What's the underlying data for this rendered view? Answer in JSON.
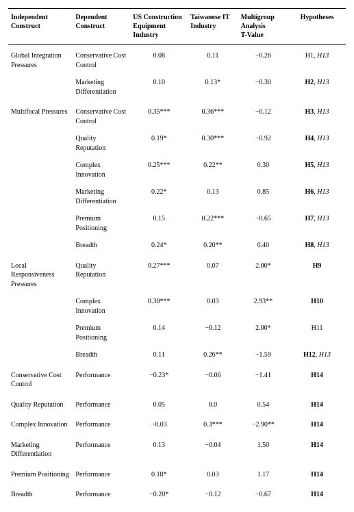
{
  "headers": {
    "independent": "Independent Construct",
    "dependent": "Dependent Construct",
    "us": "US Construction Equipment Industry",
    "tw": "Taiwanese IT Industry",
    "multigroup_l1": "Multigroup",
    "multigroup_l2": "Analysis",
    "multigroup_l3": "T-Value",
    "hypotheses": "Hypotheses"
  },
  "rows": [
    {
      "section": true,
      "ind": "Global Integration Pressures",
      "dep": "Conservative Cost Control",
      "us": "0.08",
      "tw": "0.11",
      "mg": "−0.26",
      "hyp": "H1, <i>H13</i>"
    },
    {
      "ind": "",
      "dep": "Marketing Differentiation",
      "us": "0.10",
      "tw": "0.13*",
      "mg": "−0.30",
      "hyp": "<b>H2</b>, <i>H13</i>"
    },
    {
      "section": true,
      "ind": "Multifocal Pressures",
      "dep": "Conservative Cost Control",
      "us": "0.35***",
      "tw": "0.36***",
      "mg": "−0.12",
      "hyp": "<b>H3</b>, <i>H13</i>"
    },
    {
      "ind": "",
      "dep": "Quality Reputation",
      "us": "0.19*",
      "tw": "0.30***",
      "mg": "−0.92",
      "hyp": "<b>H4</b>, <i>H13</i>"
    },
    {
      "ind": "",
      "dep": "Complex Innovation",
      "us": "0.25***",
      "tw": "0.22**",
      "mg": "0.30",
      "hyp": "<b>H5</b>, <i>H13</i>"
    },
    {
      "ind": "",
      "dep": "Marketing Differentiation",
      "us": "0.22*",
      "tw": "0.13",
      "mg": "0.85",
      "hyp": "<b>H6</b>, <i>H13</i>"
    },
    {
      "ind": "",
      "dep": "Premium Positioning",
      "us": "0.15",
      "tw": "0.22***",
      "mg": "−0.65",
      "hyp": "<b>H7</b>, <i>H13</i>"
    },
    {
      "ind": "",
      "dep": "Breadth",
      "us": "0.24*",
      "tw": "0.20**",
      "mg": "0.40",
      "hyp": "<b>H8</b>, <i>H13</i>"
    },
    {
      "section": true,
      "ind": "Local Responsiveness Pressures",
      "dep": "Quality Reputation",
      "us": "0.27***",
      "tw": "0.07",
      "mg": "2.00*",
      "hyp": "<b>H9</b>"
    },
    {
      "ind": "",
      "dep": "Complex Innovation",
      "us": "0.30***",
      "tw": "0.03",
      "mg": "2.93**",
      "hyp": "<b>H10</b>"
    },
    {
      "ind": "",
      "dep": "Premium Positioning",
      "us": "0.14",
      "tw": "−0.12",
      "mg": "2.00*",
      "hyp": "H11"
    },
    {
      "ind": "",
      "dep": "Breadth",
      "us": "0.11",
      "tw": "0.26**",
      "mg": "−1.59",
      "hyp": "<b>H12</b>, <i>H13</i>"
    },
    {
      "section": true,
      "ind": "Conservative Cost Control",
      "dep": "Performance",
      "us": "−0.23*",
      "tw": "−0.06",
      "mg": "−1.41",
      "hyp": "<b>H14</b>"
    },
    {
      "section": true,
      "ind": "Quality Reputation",
      "dep": "Performance",
      "us": "0.05",
      "tw": "0.0",
      "mg": "0.54",
      "hyp": "<b>H14</b>"
    },
    {
      "section": true,
      "ind": "Complex Innovation",
      "dep": "Performance",
      "us": "−0.03",
      "tw": "0.3***",
      "mg": "−2.90**",
      "hyp": "<b>H14</b>"
    },
    {
      "section": true,
      "ind": "Marketing Differentiation",
      "dep": "Performance",
      "us": "0.13",
      "tw": "−0.04",
      "mg": "1.50",
      "hyp": "<b>H14</b>"
    },
    {
      "section": true,
      "ind": "Premium Positioning",
      "dep": "Performance",
      "us": "0.18*",
      "tw": "0.03",
      "mg": "1.17",
      "hyp": "<b>H14</b>"
    },
    {
      "section": true,
      "ind": "Breadth",
      "dep": "Performance",
      "us": "−0.20*",
      "tw": "−0.12",
      "mg": "−0.67",
      "hyp": "<b>H14</b>"
    }
  ],
  "style": {
    "font_family": "Times New Roman",
    "font_size_pt": 10,
    "header_border_color": "#000000",
    "background_color": "#ffffff",
    "text_color": "#000000"
  }
}
